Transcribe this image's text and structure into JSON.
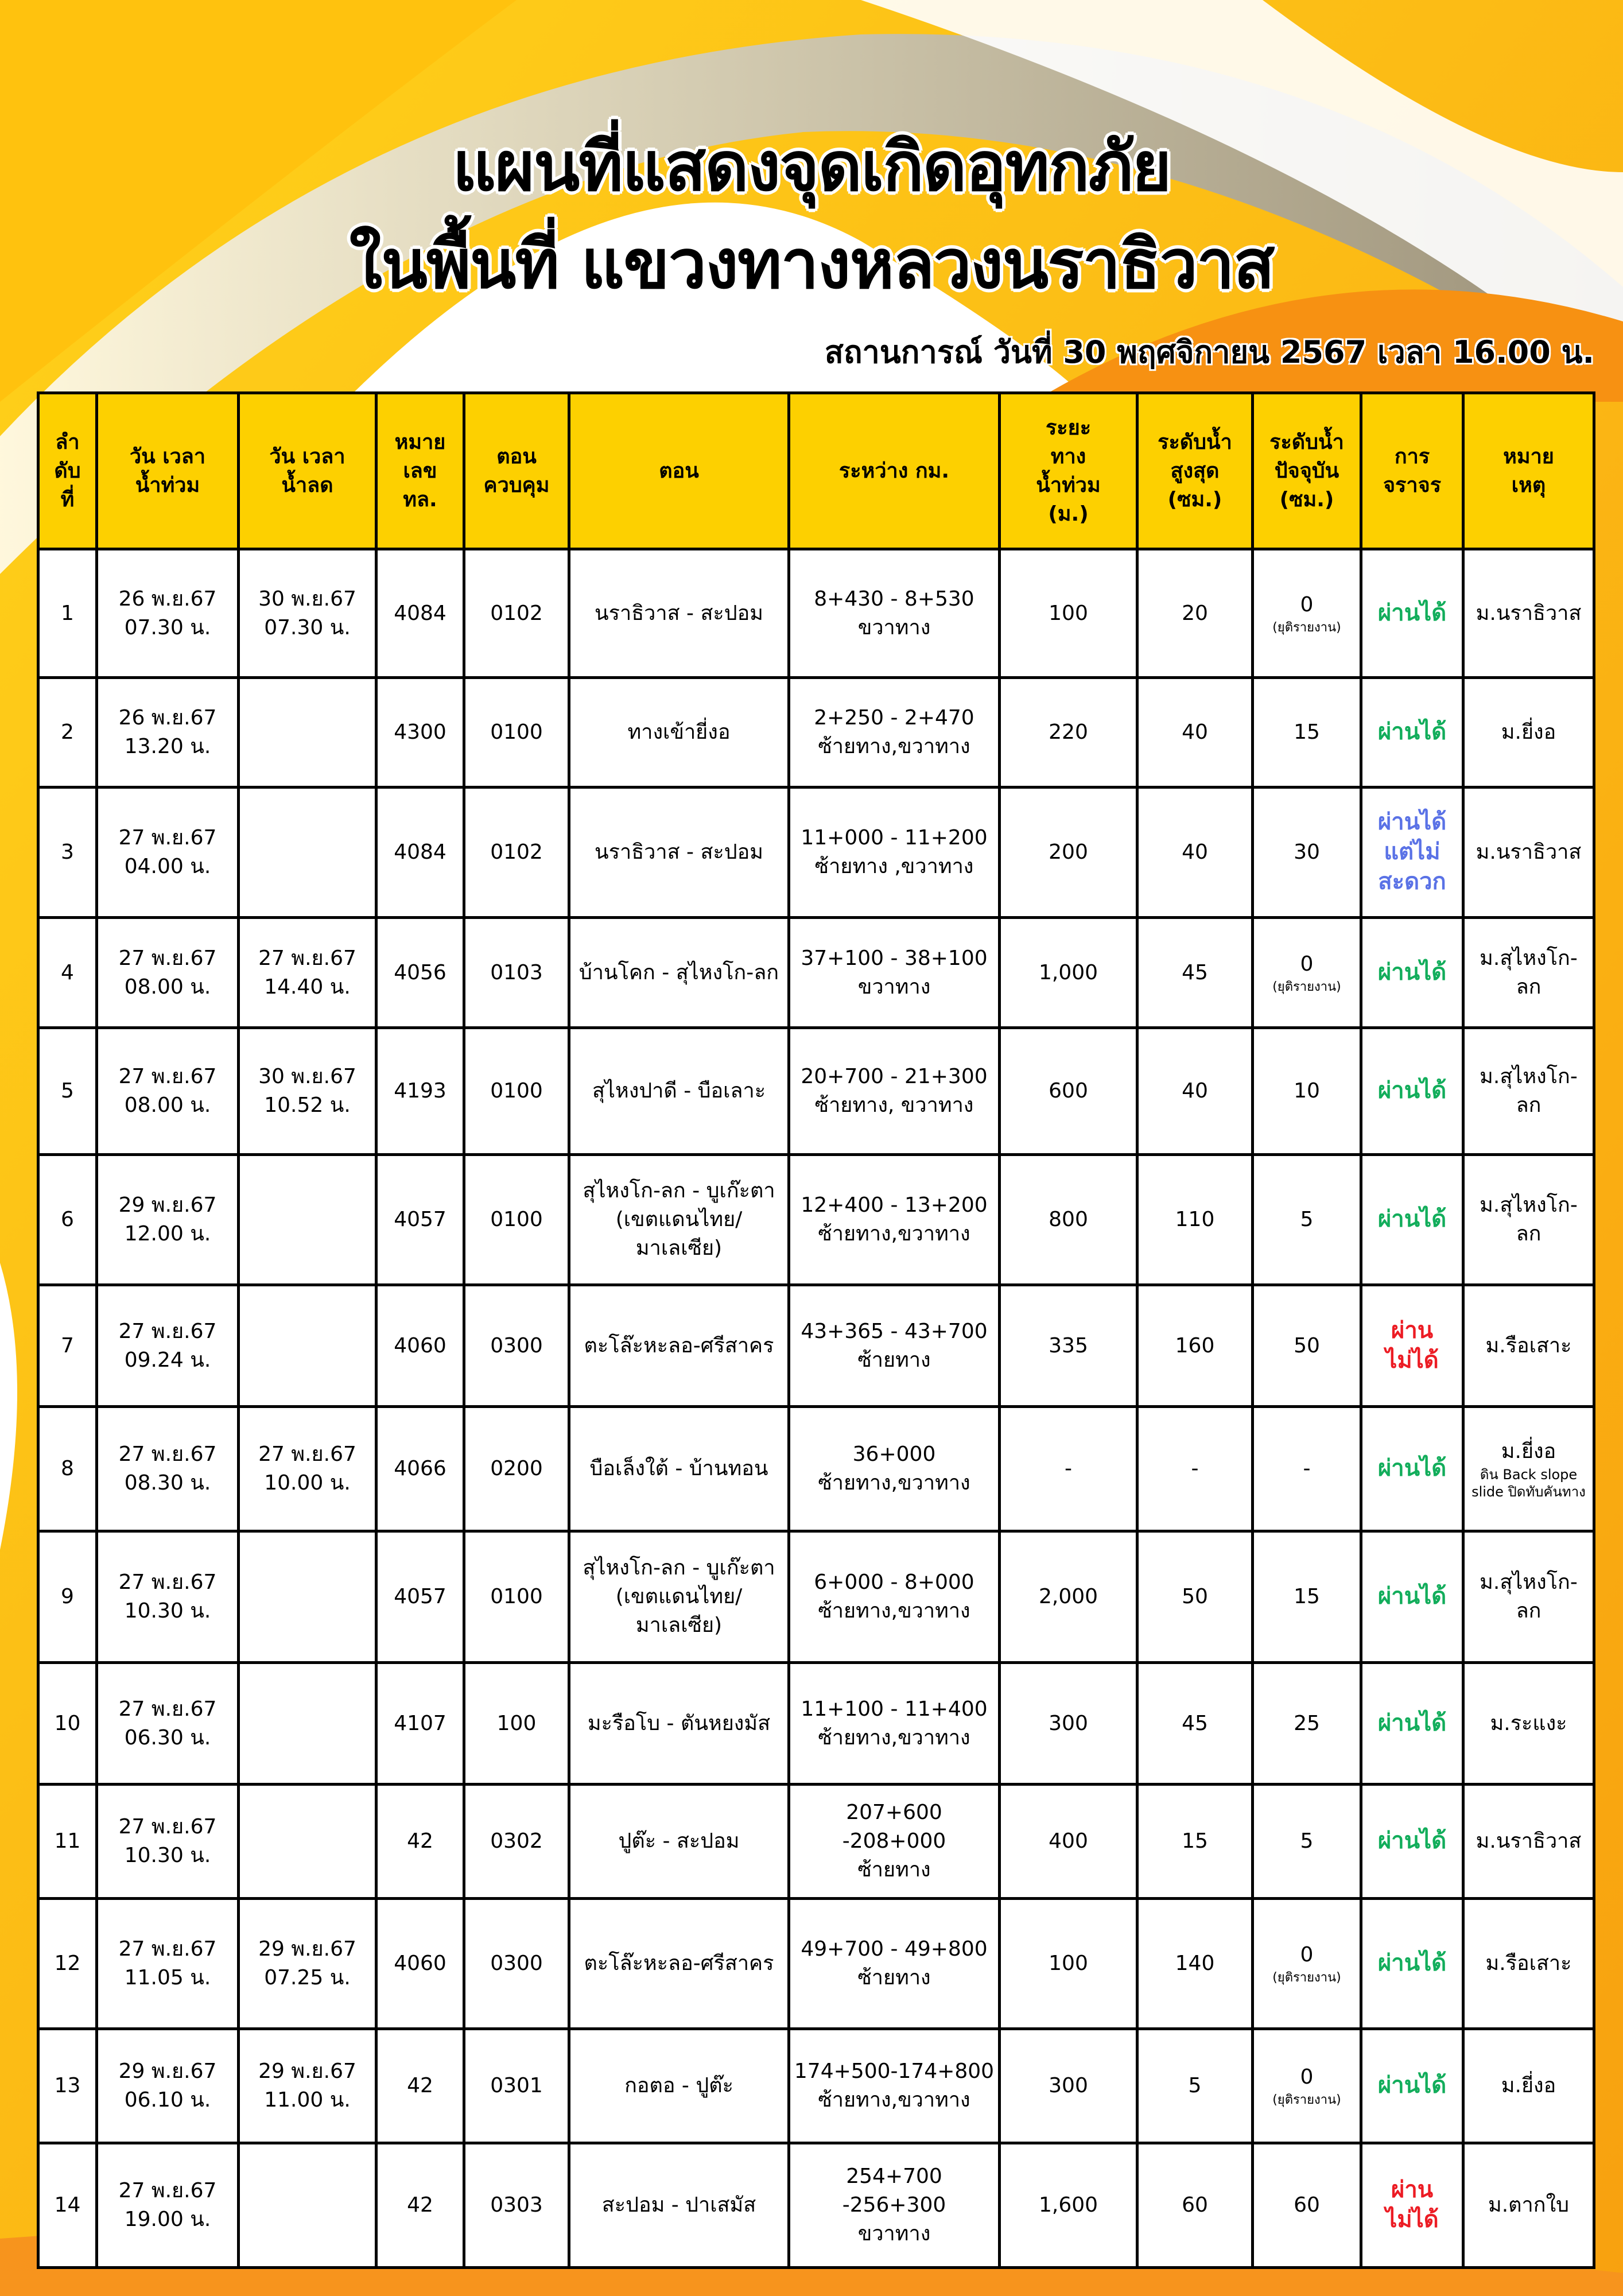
{
  "title": {
    "line1": "แผนที่แสดงจุดเกิดอุทกภัย",
    "line2": "ในพื้นที่ แขวงทางหลวงนราธิวาส"
  },
  "situation": "สถานการณ์ วันที่ 30 พฤศจิกายน 2567 เวลา 16.00 น.",
  "colors": {
    "header_bg": "#fdd000",
    "pass": "#12ad5b",
    "pass_inconvenient": "#5a72e6",
    "impassable": "#ec1c24"
  },
  "table": {
    "headers": [
      "ลำ\nดับ\nที่",
      "วัน เวลา\nน้ำท่วม",
      "วัน เวลา\nน้ำลด",
      "หมาย\nเลข\nทล.",
      "ตอน\nควบคุม",
      "ตอน",
      "ระหว่าง กม.",
      "ระยะ\nทาง\nน้ำท่วม\n(ม.)",
      "ระดับน้ำ\nสูงสุด\n(ซม.)",
      "ระดับน้ำ\nปัจจุบัน\n(ซม.)",
      "การ\nจราจร",
      "หมาย\nเหตุ"
    ],
    "rows": [
      {
        "no": "1",
        "flood": "26 พ.ย.67\n07.30 น.",
        "recede": "30 พ.ย.67\n07.30 น.",
        "route": "4084",
        "control": "0102",
        "section": "นราธิวาส - สะปอม",
        "km": "8+430 -  8+530\nขวาทาง",
        "length": "100",
        "max": "20",
        "current": "0",
        "current_note": "(ยุติรายงาน)",
        "traffic": "ผ่านได้",
        "traffic_status": "pass",
        "remark": "ม.นราธิวาส"
      },
      {
        "no": "2",
        "flood": "26 พ.ย.67\n13.20 น.",
        "recede": "",
        "route": "4300",
        "control": "0100",
        "section": "ทางเข้ายี่งอ",
        "km": "2+250 - 2+470\nซ้ายทาง,ขวาทาง",
        "length": "220",
        "max": "40",
        "current": "15",
        "traffic": "ผ่านได้",
        "traffic_status": "pass",
        "remark": "ม.ยี่งอ"
      },
      {
        "no": "3",
        "flood": "27 พ.ย.67\n04.00 น.",
        "recede": "",
        "route": "4084",
        "control": "0102",
        "section": "นราธิวาส - สะปอม",
        "km": "11+000 - 11+200\nซ้ายทาง ,ขวาทาง",
        "length": "200",
        "max": "40",
        "current": "30",
        "traffic": "ผ่านได้\nแต่ไม่\nสะดวก",
        "traffic_status": "inconvenient",
        "remark": "ม.นราธิวาส"
      },
      {
        "no": "4",
        "flood": "27 พ.ย.67\n08.00 น.",
        "recede": "27 พ.ย.67\n14.40 น.",
        "route": "4056",
        "control": "0103",
        "section": "บ้านโคก - สุไหงโก-ลก",
        "km": "37+100  - 38+100\nขวาทาง",
        "length": "1,000",
        "max": "45",
        "current": "0",
        "current_note": "(ยุติรายงาน)",
        "traffic": "ผ่านได้",
        "traffic_status": "pass",
        "remark": "ม.สุไหงโก-ลก"
      },
      {
        "no": "5",
        "flood": "27 พ.ย.67\n08.00 น.",
        "recede": "30 พ.ย.67\n10.52 น.",
        "route": "4193",
        "control": "0100",
        "section": "สุไหงปาดี - บือเลาะ",
        "km": "20+700 - 21+300\nซ้ายทาง, ขวาทาง",
        "length": "600",
        "max": "40",
        "current": "10",
        "traffic": "ผ่านได้",
        "traffic_status": "pass",
        "remark": "ม.สุไหงโก-ลก"
      },
      {
        "no": "6",
        "flood": "29 พ.ย.67\n12.00 น.",
        "recede": "",
        "route": "4057",
        "control": "0100",
        "section": "สุไหงโก-ลก - บูเก๊ะตา\n(เขตแดนไทย/\nมาเลเซีย)",
        "km": "12+400 - 13+200\nซ้ายทาง,ขวาทาง",
        "length": "800",
        "max": "110",
        "current": "5",
        "traffic": "ผ่านได้",
        "traffic_status": "pass",
        "remark": "ม.สุไหงโก-ลก"
      },
      {
        "no": "7",
        "flood": "27 พ.ย.67\n09.24 น.",
        "recede": "",
        "route": "4060",
        "control": "0300",
        "section": "ตะโล๊ะหะลอ-ศรีสาคร",
        "km": "43+365 - 43+700\nซ้ายทาง",
        "length": "335",
        "max": "160",
        "current": "50",
        "traffic": "ผ่าน\nไม่ได้",
        "traffic_status": "impassable",
        "remark": "ม.รือเสาะ"
      },
      {
        "no": "8",
        "flood": "27 พ.ย.67\n08.30 น.",
        "recede": "27 พ.ย.67\n10.00 น.",
        "route": "4066",
        "control": "0200",
        "section": "บือเล็งใต้ - บ้านทอน",
        "km": "36+000\nซ้ายทาง,ขวาทาง",
        "length": "-",
        "max": "-",
        "current": "-",
        "traffic": "ผ่านได้",
        "traffic_status": "pass",
        "remark": "ม.ยี่งอ",
        "remark_note": "ดิน Back slope\nslide ปิดทับคันทาง"
      },
      {
        "no": "9",
        "flood": "27 พ.ย.67\n10.30 น.",
        "recede": "",
        "route": "4057",
        "control": "0100",
        "section": "สุไหงโก-ลก - บูเก๊ะตา\n(เขตแดนไทย/\nมาเลเซีย)",
        "km": "6+000 - 8+000\nซ้ายทาง,ขวาทาง",
        "length": "2,000",
        "max": "50",
        "current": "15",
        "traffic": "ผ่านได้",
        "traffic_status": "pass",
        "remark": "ม.สุไหงโก-ลก"
      },
      {
        "no": "10",
        "flood": "27 พ.ย.67\n06.30 น.",
        "recede": "",
        "route": "4107",
        "control": "100",
        "section": "มะรือโบ - ตันหยงมัส",
        "km": "11+100 - 11+400\nซ้ายทาง,ขวาทาง",
        "length": "300",
        "max": "45",
        "current": "25",
        "traffic": "ผ่านได้",
        "traffic_status": "pass",
        "remark": "ม.ระแงะ"
      },
      {
        "no": "11",
        "flood": "27 พ.ย.67\n10.30 น.",
        "recede": "",
        "route": "42",
        "control": "0302",
        "section": "ปูต๊ะ - สะปอม",
        "km": "207+600 -208+000\nซ้ายทาง",
        "length": "400",
        "max": "15",
        "current": "5",
        "traffic": "ผ่านได้",
        "traffic_status": "pass",
        "remark": "ม.นราธิวาส"
      },
      {
        "no": "12",
        "flood": "27 พ.ย.67\n11.05 น.",
        "recede": "29 พ.ย.67\n07.25 น.",
        "route": "4060",
        "control": "0300",
        "section": "ตะโล๊ะหะลอ-ศรีสาคร",
        "km": "49+700 - 49+800\nซ้ายทาง",
        "length": "100",
        "max": "140",
        "current": "0",
        "current_note": "(ยุติรายงาน)",
        "traffic": "ผ่านได้",
        "traffic_status": "pass",
        "remark": "ม.รือเสาะ"
      },
      {
        "no": "13",
        "flood": "29 พ.ย.67\n06.10 น.",
        "recede": "29 พ.ย.67\n11.00 น.",
        "route": "42",
        "control": "0301",
        "section": "กอตอ - ปูต๊ะ",
        "km": "174+500-174+800\nซ้ายทาง,ขวาทาง",
        "length": "300",
        "max": "5",
        "current": "0",
        "current_note": "(ยุติรายงาน)",
        "traffic": "ผ่านได้",
        "traffic_status": "pass",
        "remark": "ม.ยี่งอ"
      },
      {
        "no": "14",
        "flood": "27 พ.ย.67\n19.00 น.",
        "recede": "",
        "route": "42",
        "control": "0303",
        "section": "สะปอม - ปาเสมัส",
        "km": "254+700 -256+300\nขวาทาง",
        "length": "1,600",
        "max": "60",
        "current": "60",
        "traffic": "ผ่าน\nไม่ได้",
        "traffic_status": "impassable",
        "remark": "ม.ตากใบ"
      }
    ]
  }
}
